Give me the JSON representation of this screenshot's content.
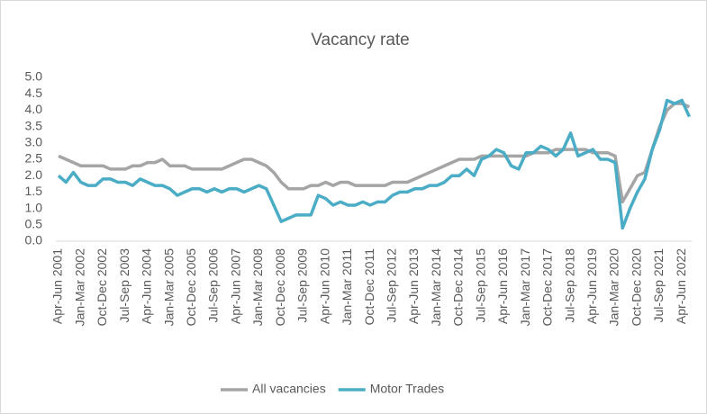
{
  "chart_data": {
    "type": "line",
    "title": "Vacancy rate",
    "categories": [
      "Apr-Jun 2001",
      null,
      null,
      "Jan-Mar 2002",
      null,
      null,
      "Oct-Dec 2002",
      null,
      null,
      "Jul-Sep 2003",
      null,
      null,
      "Apr-Jun 2004",
      null,
      null,
      "Jan-Mar 2005",
      null,
      null,
      "Oct-Dec 2005",
      null,
      null,
      "Jul-Sep 2006",
      null,
      null,
      "Apr-Jun 2007",
      null,
      null,
      "Jan-Mar 2008",
      null,
      null,
      "Oct-Dec 2008",
      null,
      null,
      "Jul-Sep 2009",
      null,
      null,
      "Apr-Jun 2010",
      null,
      null,
      "Jan-Mar 2011",
      null,
      null,
      "Oct-Dec 2011",
      null,
      null,
      "Jul-Sep 2012",
      null,
      null,
      "Apr-Jun 2013",
      null,
      null,
      "Jan-Mar 2014",
      null,
      null,
      "Oct-Dec 2014",
      null,
      null,
      "Jul-Sep 2015",
      null,
      null,
      "Apr-Jun 2016",
      null,
      null,
      "Jan-Mar 2017",
      null,
      null,
      "Oct-Dec 2017",
      null,
      null,
      "Jul-Sep 2018",
      null,
      null,
      "Apr-Jun 2019",
      null,
      null,
      "Jan-Mar 2020",
      null,
      null,
      "Oct-Dec 2020",
      null,
      null,
      "Jul-Sep 2021",
      null,
      null,
      "Apr-Jun 2022",
      null
    ],
    "series": [
      {
        "name": "All vacancies",
        "color": "#a5a5a5",
        "values": [
          2.6,
          2.5,
          2.4,
          2.3,
          2.3,
          2.3,
          2.3,
          2.2,
          2.2,
          2.2,
          2.3,
          2.3,
          2.4,
          2.4,
          2.5,
          2.3,
          2.3,
          2.3,
          2.2,
          2.2,
          2.2,
          2.2,
          2.2,
          2.3,
          2.4,
          2.5,
          2.5,
          2.4,
          2.3,
          2.1,
          1.8,
          1.6,
          1.6,
          1.6,
          1.7,
          1.7,
          1.8,
          1.7,
          1.8,
          1.8,
          1.7,
          1.7,
          1.7,
          1.7,
          1.7,
          1.8,
          1.8,
          1.8,
          1.9,
          2.0,
          2.1,
          2.2,
          2.3,
          2.4,
          2.5,
          2.5,
          2.5,
          2.6,
          2.6,
          2.6,
          2.6,
          2.6,
          2.6,
          2.6,
          2.7,
          2.7,
          2.7,
          2.8,
          2.8,
          2.8,
          2.8,
          2.8,
          2.7,
          2.7,
          2.7,
          2.6,
          1.2,
          1.6,
          2.0,
          2.1,
          2.8,
          3.5,
          4.0,
          4.2,
          4.2,
          4.1
        ]
      },
      {
        "name": "Motor Trades",
        "color": "#4bacc6",
        "values": [
          2.0,
          1.8,
          2.1,
          1.8,
          1.7,
          1.7,
          1.9,
          1.9,
          1.8,
          1.8,
          1.7,
          1.9,
          1.8,
          1.7,
          1.7,
          1.6,
          1.4,
          1.5,
          1.6,
          1.6,
          1.5,
          1.6,
          1.5,
          1.6,
          1.6,
          1.5,
          1.6,
          1.7,
          1.6,
          1.1,
          0.6,
          0.7,
          0.8,
          0.8,
          0.8,
          1.4,
          1.3,
          1.1,
          1.2,
          1.1,
          1.1,
          1.2,
          1.1,
          1.2,
          1.2,
          1.4,
          1.5,
          1.5,
          1.6,
          1.6,
          1.7,
          1.7,
          1.8,
          2.0,
          2.0,
          2.2,
          2.0,
          2.5,
          2.6,
          2.8,
          2.7,
          2.3,
          2.2,
          2.7,
          2.7,
          2.9,
          2.8,
          2.6,
          2.8,
          3.3,
          2.6,
          2.7,
          2.8,
          2.5,
          2.5,
          2.4,
          0.4,
          1.0,
          1.5,
          1.9,
          2.8,
          3.4,
          4.3,
          4.2,
          4.3,
          3.8
        ]
      }
    ],
    "ylim": [
      0,
      5
    ],
    "yticks": [
      {
        "value": 0,
        "label": "0.0"
      },
      {
        "value": 0.5,
        "label": "0.5"
      },
      {
        "value": 1,
        "label": "1.0"
      },
      {
        "value": 1.5,
        "label": "1.5"
      },
      {
        "value": 2,
        "label": "2.0"
      },
      {
        "value": 2.5,
        "label": "2.5"
      },
      {
        "value": 3,
        "label": "3.0"
      },
      {
        "value": 3.5,
        "label": "3.5"
      },
      {
        "value": 4,
        "label": "4.0"
      },
      {
        "value": 4.5,
        "label": "4.5"
      },
      {
        "value": 5,
        "label": "5.0"
      }
    ],
    "grid": false,
    "legend": "bottom"
  }
}
